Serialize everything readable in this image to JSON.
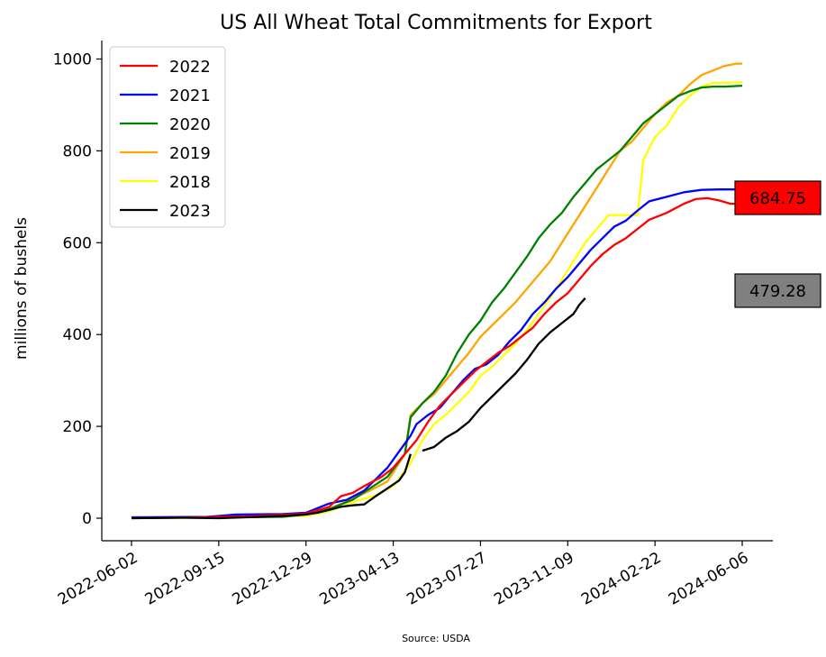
{
  "chart_data": {
    "type": "line",
    "title": "US All Wheat Total Commitments for Export",
    "ylabel": "millions of bushels",
    "xlabel": "",
    "source": "Source: USDA",
    "ylim": [
      -48,
      1035
    ],
    "y_ticks": [
      0,
      200,
      400,
      600,
      800,
      1000
    ],
    "x_ticks": [
      "2022-06-02",
      "2022-09-15",
      "2022-12-29",
      "2023-04-13",
      "2023-07-27",
      "2023-11-09",
      "2024-02-22",
      "2024-06-06"
    ],
    "grid": false,
    "legend_position": "top-left",
    "colors": {
      "2022": "#ff0000",
      "2021": "#0000ff",
      "2020": "#008000",
      "2019": "#ffa500",
      "2018": "#ffff00",
      "2023": "#000000"
    },
    "series": [
      {
        "name": "2022",
        "color": "#ff0000",
        "points": [
          [
            "2022-06-02",
            0
          ],
          [
            "2022-08-25",
            2
          ],
          [
            "2022-10-13",
            4
          ],
          [
            "2022-11-17",
            6
          ],
          [
            "2022-12-29",
            10
          ],
          [
            "2023-01-26",
            25
          ],
          [
            "2023-02-09",
            48
          ],
          [
            "2023-02-23",
            55
          ],
          [
            "2023-03-09",
            70
          ],
          [
            "2023-03-30",
            90
          ],
          [
            "2023-04-13",
            110
          ],
          [
            "2023-04-27",
            140
          ],
          [
            "2023-05-11",
            170
          ],
          [
            "2023-05-25",
            210
          ],
          [
            "2023-06-08",
            245
          ],
          [
            "2023-06-22",
            270
          ],
          [
            "2023-07-06",
            295
          ],
          [
            "2023-07-20",
            320
          ],
          [
            "2023-08-03",
            340
          ],
          [
            "2023-08-17",
            360
          ],
          [
            "2023-08-31",
            375
          ],
          [
            "2023-09-14",
            395
          ],
          [
            "2023-09-28",
            415
          ],
          [
            "2023-10-12",
            445
          ],
          [
            "2023-10-26",
            470
          ],
          [
            "2023-11-09",
            490
          ],
          [
            "2023-11-23",
            520
          ],
          [
            "2023-12-07",
            550
          ],
          [
            "2023-12-21",
            575
          ],
          [
            "2024-01-04",
            595
          ],
          [
            "2024-01-18",
            610
          ],
          [
            "2024-02-01",
            630
          ],
          [
            "2024-02-15",
            650
          ],
          [
            "2024-03-07",
            665
          ],
          [
            "2024-03-28",
            685
          ],
          [
            "2024-04-11",
            695
          ],
          [
            "2024-04-25",
            697
          ],
          [
            "2024-05-09",
            692
          ],
          [
            "2024-05-23",
            684.75
          ],
          [
            "2024-06-06",
            684.75
          ]
        ]
      },
      {
        "name": "2021",
        "color": "#0000ff",
        "points": [
          [
            "2022-06-02",
            2
          ],
          [
            "2022-09-01",
            3
          ],
          [
            "2022-10-06",
            8
          ],
          [
            "2022-12-01",
            9
          ],
          [
            "2022-12-29",
            12
          ],
          [
            "2023-01-12",
            22
          ],
          [
            "2023-01-26",
            32
          ],
          [
            "2023-02-16",
            40
          ],
          [
            "2023-03-09",
            60
          ],
          [
            "2023-03-23",
            85
          ],
          [
            "2023-04-06",
            110
          ],
          [
            "2023-04-20",
            145
          ],
          [
            "2023-05-04",
            180
          ],
          [
            "2023-05-11",
            205
          ],
          [
            "2023-05-25",
            225
          ],
          [
            "2023-06-08",
            240
          ],
          [
            "2023-06-22",
            270
          ],
          [
            "2023-07-06",
            300
          ],
          [
            "2023-07-20",
            325
          ],
          [
            "2023-08-03",
            335
          ],
          [
            "2023-08-17",
            355
          ],
          [
            "2023-08-31",
            385
          ],
          [
            "2023-09-14",
            410
          ],
          [
            "2023-09-28",
            445
          ],
          [
            "2023-10-12",
            470
          ],
          [
            "2023-10-26",
            500
          ],
          [
            "2023-11-09",
            525
          ],
          [
            "2023-11-23",
            555
          ],
          [
            "2023-12-07",
            585
          ],
          [
            "2023-12-21",
            610
          ],
          [
            "2024-01-04",
            635
          ],
          [
            "2024-01-18",
            648
          ],
          [
            "2024-02-01",
            670
          ],
          [
            "2024-02-15",
            690
          ],
          [
            "2024-03-07",
            700
          ],
          [
            "2024-03-28",
            710
          ],
          [
            "2024-04-18",
            715
          ],
          [
            "2024-05-09",
            716
          ],
          [
            "2024-06-06",
            716
          ]
        ]
      },
      {
        "name": "2020",
        "color": "#008000",
        "points": [
          [
            "2022-06-02",
            1
          ],
          [
            "2022-09-15",
            2
          ],
          [
            "2022-12-01",
            3
          ],
          [
            "2022-12-29",
            8
          ],
          [
            "2023-01-26",
            20
          ],
          [
            "2023-02-23",
            40
          ],
          [
            "2023-03-16",
            65
          ],
          [
            "2023-04-06",
            90
          ],
          [
            "2023-04-27",
            140
          ],
          [
            "2023-05-04",
            220
          ],
          [
            "2023-05-18",
            250
          ],
          [
            "2023-06-01",
            275
          ],
          [
            "2023-06-15",
            310
          ],
          [
            "2023-06-29",
            360
          ],
          [
            "2023-07-13",
            400
          ],
          [
            "2023-07-27",
            430
          ],
          [
            "2023-08-10",
            470
          ],
          [
            "2023-08-24",
            500
          ],
          [
            "2023-09-07",
            535
          ],
          [
            "2023-09-21",
            570
          ],
          [
            "2023-10-05",
            610
          ],
          [
            "2023-10-19",
            640
          ],
          [
            "2023-11-02",
            665
          ],
          [
            "2023-11-16",
            700
          ],
          [
            "2023-11-30",
            730
          ],
          [
            "2023-12-14",
            760
          ],
          [
            "2023-12-28",
            780
          ],
          [
            "2024-01-11",
            800
          ],
          [
            "2024-01-25",
            830
          ],
          [
            "2024-02-08",
            860
          ],
          [
            "2024-02-22",
            880
          ],
          [
            "2024-03-07",
            900
          ],
          [
            "2024-03-21",
            920
          ],
          [
            "2024-04-04",
            930
          ],
          [
            "2024-04-18",
            938
          ],
          [
            "2024-05-02",
            940
          ],
          [
            "2024-05-16",
            940
          ],
          [
            "2024-06-06",
            942
          ]
        ]
      },
      {
        "name": "2019",
        "color": "#ffa500",
        "points": [
          [
            "2022-06-02",
            1
          ],
          [
            "2022-09-15",
            2
          ],
          [
            "2022-12-29",
            8
          ],
          [
            "2023-01-26",
            20
          ],
          [
            "2023-02-23",
            42
          ],
          [
            "2023-03-16",
            60
          ],
          [
            "2023-04-06",
            80
          ],
          [
            "2023-04-27",
            140
          ],
          [
            "2023-05-04",
            225
          ],
          [
            "2023-05-18",
            250
          ],
          [
            "2023-06-01",
            270
          ],
          [
            "2023-06-15",
            300
          ],
          [
            "2023-06-29",
            330
          ],
          [
            "2023-07-13",
            360
          ],
          [
            "2023-07-27",
            395
          ],
          [
            "2023-08-10",
            420
          ],
          [
            "2023-08-24",
            445
          ],
          [
            "2023-09-07",
            470
          ],
          [
            "2023-09-21",
            500
          ],
          [
            "2023-10-05",
            530
          ],
          [
            "2023-10-19",
            560
          ],
          [
            "2023-11-02",
            600
          ],
          [
            "2023-11-16",
            640
          ],
          [
            "2023-11-30",
            680
          ],
          [
            "2023-12-14",
            720
          ],
          [
            "2023-12-28",
            760
          ],
          [
            "2024-01-11",
            800
          ],
          [
            "2024-01-25",
            820
          ],
          [
            "2024-02-08",
            850
          ],
          [
            "2024-02-22",
            880
          ],
          [
            "2024-03-07",
            905
          ],
          [
            "2024-03-21",
            920
          ],
          [
            "2024-04-04",
            945
          ],
          [
            "2024-04-18",
            965
          ],
          [
            "2024-05-02",
            975
          ],
          [
            "2024-05-16",
            985
          ],
          [
            "2024-05-30",
            990
          ],
          [
            "2024-06-06",
            990
          ]
        ]
      },
      {
        "name": "2018",
        "color": "#ffff00",
        "points": [
          [
            "2022-06-02",
            0
          ],
          [
            "2022-09-15",
            1
          ],
          [
            "2022-12-29",
            5
          ],
          [
            "2023-01-26",
            15
          ],
          [
            "2023-02-23",
            35
          ],
          [
            "2023-03-23",
            50
          ],
          [
            "2023-04-13",
            70
          ],
          [
            "2023-05-04",
            120
          ],
          [
            "2023-05-18",
            170
          ],
          [
            "2023-06-01",
            205
          ],
          [
            "2023-06-15",
            225
          ],
          [
            "2023-06-29",
            250
          ],
          [
            "2023-07-13",
            275
          ],
          [
            "2023-07-27",
            310
          ],
          [
            "2023-08-10",
            330
          ],
          [
            "2023-08-24",
            355
          ],
          [
            "2023-09-07",
            380
          ],
          [
            "2023-09-21",
            410
          ],
          [
            "2023-10-05",
            445
          ],
          [
            "2023-10-19",
            480
          ],
          [
            "2023-11-02",
            520
          ],
          [
            "2023-11-16",
            560
          ],
          [
            "2023-11-30",
            600
          ],
          [
            "2023-12-14",
            630
          ],
          [
            "2023-12-28",
            660
          ],
          [
            "2024-01-11",
            660
          ],
          [
            "2024-01-25",
            660
          ],
          [
            "2024-02-01",
            660
          ],
          [
            "2024-02-08",
            780
          ],
          [
            "2024-02-22",
            830
          ],
          [
            "2024-03-07",
            855
          ],
          [
            "2024-03-21",
            895
          ],
          [
            "2024-04-04",
            920
          ],
          [
            "2024-04-18",
            940
          ],
          [
            "2024-05-02",
            948
          ],
          [
            "2024-05-16",
            948
          ],
          [
            "2024-06-06",
            950
          ]
        ]
      },
      {
        "name": "2023",
        "color": "#000000",
        "points": [
          [
            "2022-06-02",
            0
          ],
          [
            "2022-08-04",
            1
          ],
          [
            "2022-09-15",
            0
          ],
          [
            "2022-11-03",
            3
          ],
          [
            "2022-12-01",
            5
          ],
          [
            "2022-12-29",
            8
          ],
          [
            "2023-01-12",
            12
          ],
          [
            "2023-01-26",
            18
          ],
          [
            "2023-02-09",
            25
          ],
          [
            "2023-02-23",
            28
          ],
          [
            "2023-03-09",
            30
          ],
          [
            "2023-03-23",
            48
          ],
          [
            "2023-04-06",
            65
          ],
          [
            "2023-04-20",
            82
          ],
          [
            "2023-04-27",
            100
          ],
          [
            "2023-05-04",
            140
          ],
          null,
          [
            "2023-05-18",
            147
          ],
          [
            "2023-06-01",
            155
          ],
          [
            "2023-06-15",
            175
          ],
          [
            "2023-06-29",
            190
          ],
          [
            "2023-07-13",
            210
          ],
          [
            "2023-07-27",
            240
          ],
          [
            "2023-08-10",
            265
          ],
          [
            "2023-08-24",
            290
          ],
          [
            "2023-09-07",
            315
          ],
          [
            "2023-09-21",
            345
          ],
          [
            "2023-10-05",
            380
          ],
          [
            "2023-10-19",
            405
          ],
          [
            "2023-11-02",
            425
          ],
          [
            "2023-11-16",
            445
          ],
          [
            "2023-11-23",
            465
          ],
          [
            "2023-11-30",
            479.28
          ]
        ]
      }
    ],
    "annotations": [
      {
        "text": "684.75",
        "value": 684.75,
        "background": "#ff0000"
      },
      {
        "text": "479.28",
        "value": 479.28,
        "background": "#808080"
      }
    ]
  }
}
